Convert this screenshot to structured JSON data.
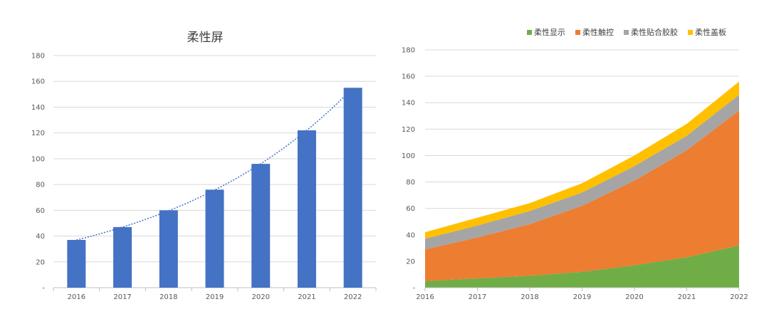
{
  "chart_data": [
    {
      "type": "bar",
      "title": "柔性屏",
      "categories": [
        "2016",
        "2017",
        "2018",
        "2019",
        "2020",
        "2021",
        "2022"
      ],
      "values": [
        37,
        47,
        60,
        76,
        96,
        122,
        155
      ],
      "trendline": "exponential (dotted)",
      "ylim": [
        0,
        180
      ],
      "yticks": [
        "-",
        "20",
        "40",
        "60",
        "80",
        "100",
        "120",
        "140",
        "160",
        "180"
      ],
      "grid": true,
      "colors": {
        "bar": "#4472C4",
        "trend": "#4472C4"
      }
    },
    {
      "type": "area",
      "stacked": true,
      "categories": [
        "2016",
        "2017",
        "2018",
        "2019",
        "2020",
        "2021",
        "2022"
      ],
      "series": [
        {
          "name": "柔性显示",
          "values": [
            5,
            7,
            9,
            12,
            17,
            23,
            32
          ],
          "color": "#70AD47"
        },
        {
          "name": "柔性触控",
          "values": [
            24,
            31,
            39,
            50,
            64,
            81,
            102
          ],
          "color": "#ED7D31"
        },
        {
          "name": "柔性贴合胶胶",
          "values": [
            8,
            9,
            10,
            10,
            11,
            11,
            12
          ],
          "color": "#A5A5A5"
        },
        {
          "name": "柔性盖板",
          "values": [
            5,
            6,
            6,
            7,
            8,
            9,
            10
          ],
          "color": "#FFC000"
        }
      ],
      "ylim": [
        0,
        180
      ],
      "yticks": [
        "-",
        "20",
        "40",
        "60",
        "80",
        "100",
        "120",
        "140",
        "160",
        "180"
      ],
      "legend": "top",
      "grid": true
    }
  ]
}
